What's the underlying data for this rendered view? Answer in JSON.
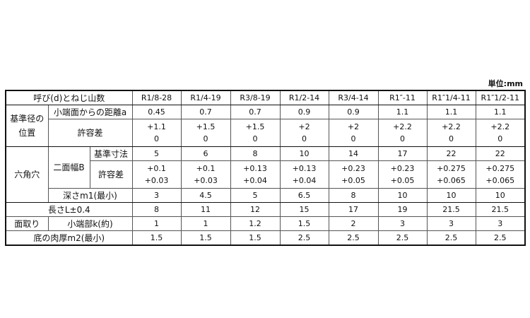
{
  "unit": "単位:mm",
  "header": {
    "label": "呼び(d)とねじ山数",
    "sizes": [
      "R1/8-28",
      "R1/4-19",
      "R3/8-19",
      "R1/2-14",
      "R3/4-14",
      "R1″-11",
      "R1″1/4-11",
      "R1″1/2-11"
    ]
  },
  "reference_position": {
    "group_label": "基準径の位置",
    "distance": {
      "label": "小端面からの距離a",
      "values": [
        "0.45",
        "0.7",
        "0.7",
        "0.9",
        "0.9",
        "1.1",
        "1.1",
        "1.1"
      ]
    },
    "tolerance": {
      "label": "許容差",
      "upper": [
        "+1.1",
        "+1.5",
        "+1.5",
        "+2",
        "+2",
        "+2.2",
        "+2.2",
        "+2.2"
      ],
      "lower": [
        "0",
        "0",
        "0",
        "0",
        "0",
        "0",
        "0",
        "0"
      ]
    }
  },
  "hex_socket": {
    "group_label": "六角穴",
    "width_label": "二面幅B",
    "base": {
      "label": "基準寸法",
      "values": [
        "5",
        "6",
        "8",
        "10",
        "14",
        "17",
        "22",
        "22"
      ]
    },
    "tolerance": {
      "label": "許容差",
      "upper": [
        "+0.1",
        "+0.1",
        "+0.13",
        "+0.13",
        "+0.23",
        "+0.23",
        "+0.275",
        "+0.275"
      ],
      "lower": [
        "+0.03",
        "+0.03",
        "+0.04",
        "+0.04",
        "+0.05",
        "+0.05",
        "+0.065",
        "+0.065"
      ]
    },
    "depth": {
      "label": "深さm1(最小)",
      "values": [
        "3",
        "4.5",
        "5",
        "6.5",
        "8",
        "10",
        "10",
        "10"
      ]
    }
  },
  "length": {
    "label": "長さL±0.4",
    "values": [
      "8",
      "11",
      "12",
      "15",
      "17",
      "19",
      "21.5",
      "21.5"
    ]
  },
  "chamfer": {
    "group_label": "面取り",
    "label": "小端部k(約)",
    "values": [
      "1",
      "1",
      "1.2",
      "1.5",
      "2",
      "3",
      "3",
      "3"
    ]
  },
  "bottom_thickness": {
    "label": "底の肉厚m2(最小)",
    "values": [
      "1.5",
      "1.5",
      "1.5",
      "2.5",
      "2.5",
      "2.5",
      "2.5",
      "2.5"
    ]
  }
}
